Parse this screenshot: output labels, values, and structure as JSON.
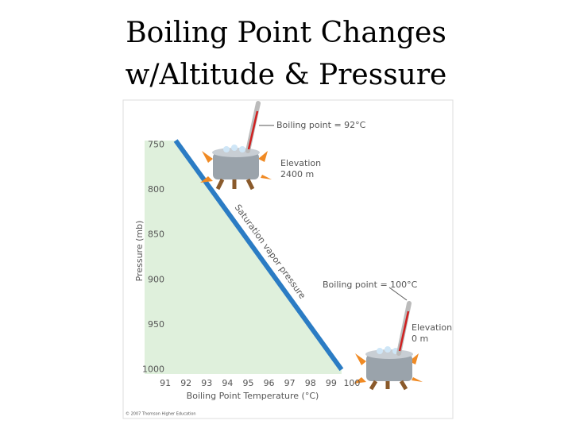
{
  "chart_data": {
    "type": "line",
    "title": [
      "Boiling Point Changes",
      "w/Altitude & Pressure"
    ],
    "x_label": "Boiling Point Temperature (°C)",
    "y_label": "Pressure (mb)",
    "series": [
      {
        "name": "Saturation vapor pressure",
        "color": "#2b7cc4",
        "x": [
          91.5,
          99.5
        ],
        "values": [
          745,
          1000
        ]
      }
    ],
    "fill_color": "#dff0dc",
    "xlim": [
      90,
      100.5
    ],
    "xticks": [
      91,
      92,
      93,
      94,
      95,
      96,
      97,
      98,
      99,
      100
    ],
    "ylim": [
      1005,
      730
    ],
    "yticks": [
      750,
      800,
      850,
      900,
      950,
      1000
    ],
    "grid": false,
    "annotations": [
      "Boiling point = 92°C",
      "Elevation",
      "2400 m",
      "Boiling point = 100°C",
      "Elevation",
      "0 m"
    ],
    "credit": "© 2007 Thomson Higher Education"
  }
}
